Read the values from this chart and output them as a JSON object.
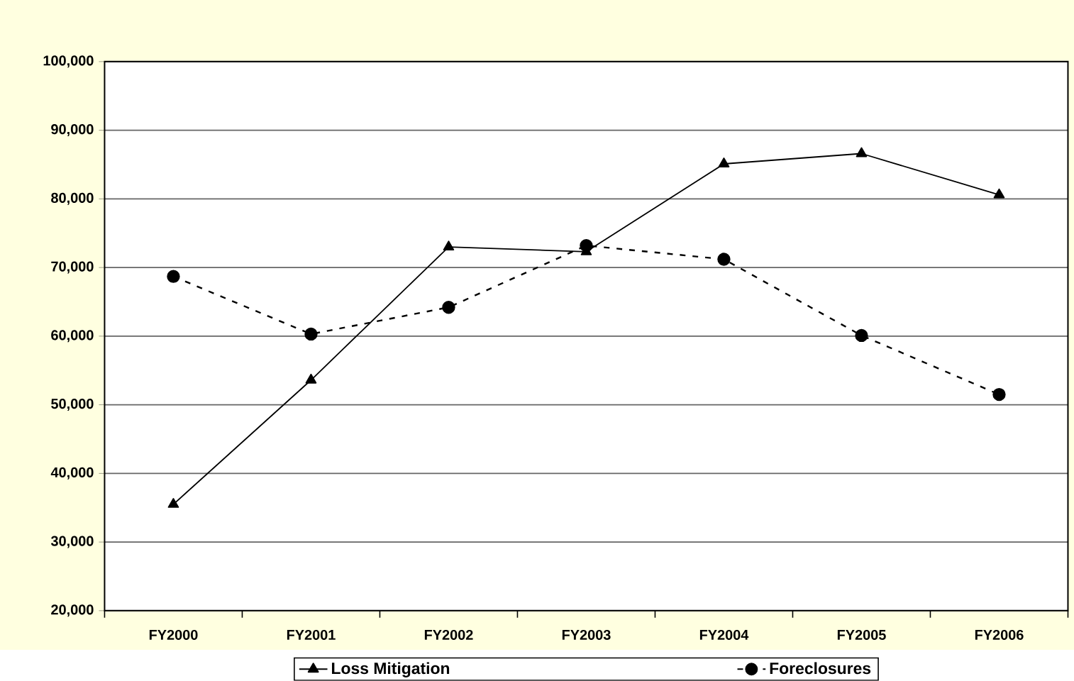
{
  "chart_data": {
    "type": "line",
    "categories": [
      "FY2000",
      "FY2001",
      "FY2002",
      "FY2003",
      "FY2004",
      "FY2005",
      "FY2006"
    ],
    "series": [
      {
        "name": "Loss Mitigation",
        "color": "#000000",
        "marker": "triangle",
        "line_style": "solid",
        "values": [
          35500,
          53600,
          73000,
          72300,
          85100,
          86600,
          80600
        ]
      },
      {
        "name": "Foreclosures",
        "color": "#000000",
        "marker": "circle",
        "line_style": "dashed",
        "values": [
          68700,
          60300,
          64200,
          73200,
          71200,
          60100,
          51500
        ]
      }
    ],
    "ylim": [
      20000,
      100000
    ],
    "yticks": [
      {
        "value": 20000,
        "label": "20,000"
      },
      {
        "value": 30000,
        "label": "30,000"
      },
      {
        "value": 40000,
        "label": "40,000"
      },
      {
        "value": 50000,
        "label": "50,000"
      },
      {
        "value": 60000,
        "label": "60,000"
      },
      {
        "value": 70000,
        "label": "70,000"
      },
      {
        "value": 80000,
        "label": "80,000"
      },
      {
        "value": 90000,
        "label": "90,000"
      },
      {
        "value": 100000,
        "label": "100,000"
      }
    ],
    "grid": "y",
    "legend": "bottom"
  }
}
